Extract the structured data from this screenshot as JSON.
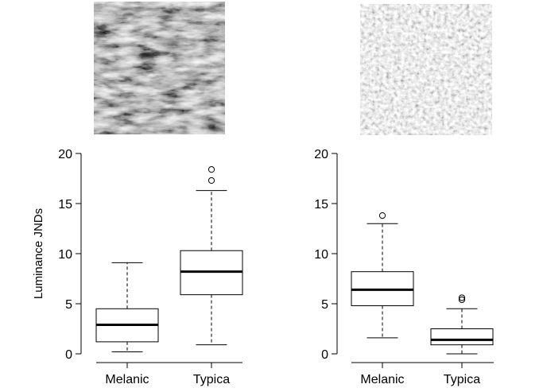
{
  "figure": {
    "photos": [
      {
        "name": "dark-bark-texture",
        "tone": "dark"
      },
      {
        "name": "lichen-bark-texture",
        "tone": "light"
      }
    ]
  },
  "chart_data": [
    {
      "type": "box",
      "ylabel": "Luminance JNDs",
      "ylim": [
        0,
        20
      ],
      "yticks": [
        0,
        5,
        10,
        15,
        20
      ],
      "categories": [
        "Melanic",
        "Typica"
      ],
      "boxes": [
        {
          "category": "Melanic",
          "whisker_low": 0.2,
          "q1": 1.2,
          "median": 2.9,
          "q3": 4.5,
          "whisker_high": 9.1,
          "outliers": []
        },
        {
          "category": "Typica",
          "whisker_low": 0.9,
          "q1": 5.9,
          "median": 8.2,
          "q3": 10.3,
          "whisker_high": 16.3,
          "outliers": [
            17.3,
            18.4
          ]
        }
      ]
    },
    {
      "type": "box",
      "ylabel": "",
      "ylim": [
        0,
        20
      ],
      "yticks": [
        0,
        5,
        10,
        15,
        20
      ],
      "categories": [
        "Melanic",
        "Typica"
      ],
      "boxes": [
        {
          "category": "Melanic",
          "whisker_low": 1.6,
          "q1": 4.8,
          "median": 6.4,
          "q3": 8.2,
          "whisker_high": 13.0,
          "outliers": [
            13.8
          ]
        },
        {
          "category": "Typica",
          "whisker_low": 0.0,
          "q1": 0.9,
          "median": 1.4,
          "q3": 2.5,
          "whisker_high": 4.5,
          "outliers": [
            5.4,
            5.6
          ]
        }
      ]
    }
  ]
}
